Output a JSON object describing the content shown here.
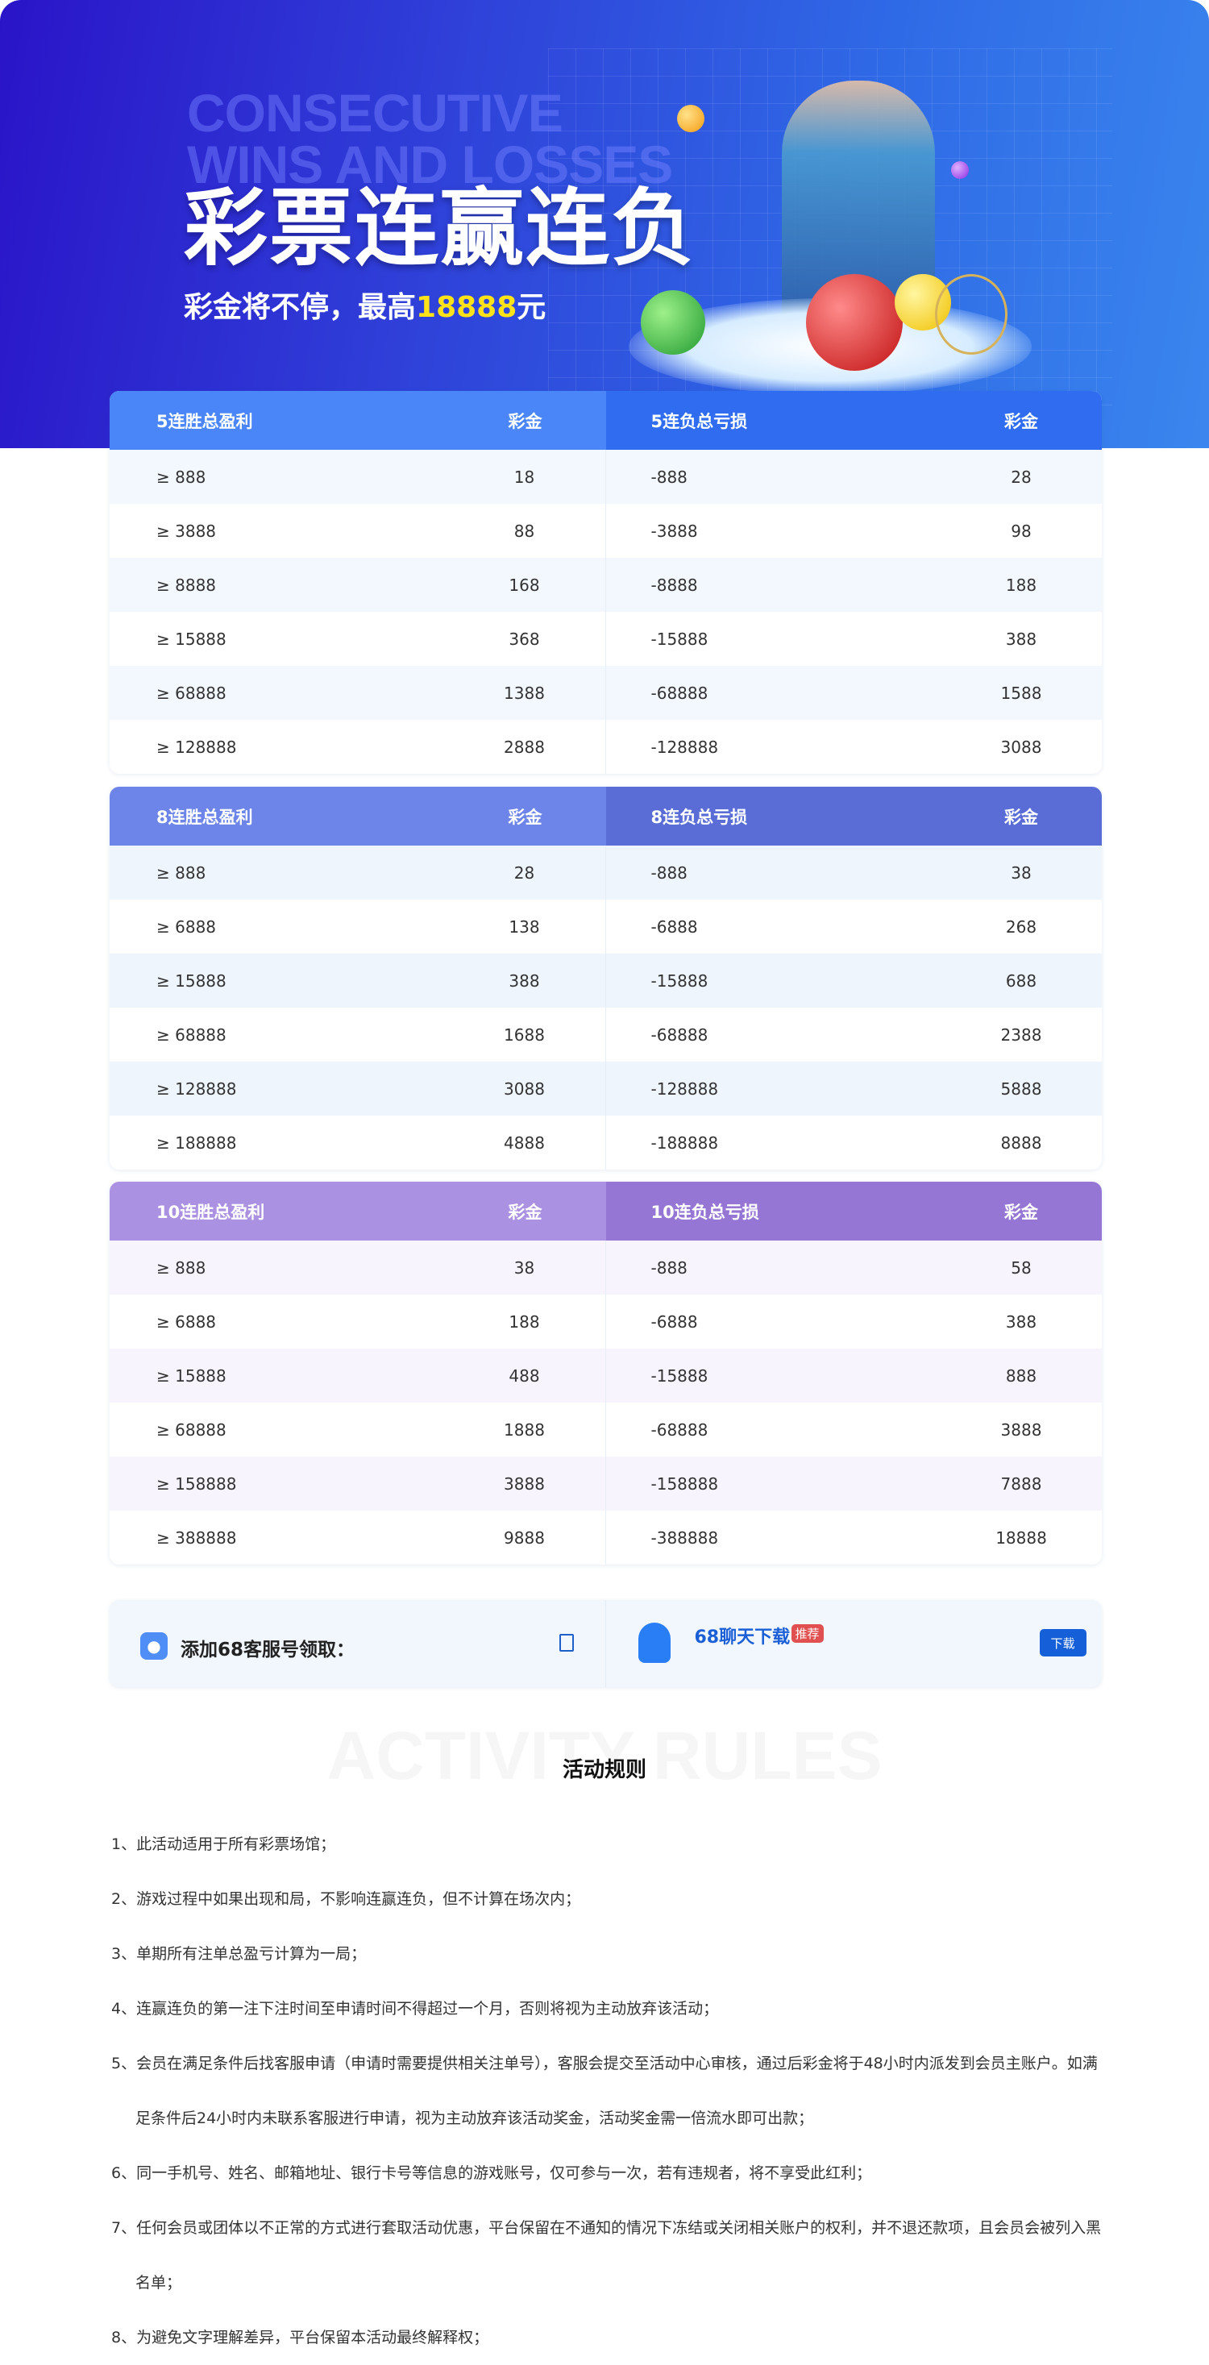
{
  "banner": {
    "title_en_1": "CONSECUTIVE",
    "title_en_2": "WINS AND LOSSES",
    "title": "彩票连赢连负",
    "subtitle_prefix": "彩金将不停，最高",
    "subtitle_amount": "18888",
    "subtitle_suffix": "元",
    "highlight_color": "#ffe21a"
  },
  "tables": [
    {
      "win_header": "5连胜总盈利",
      "loss_header": "5连负总亏损",
      "prize_header": "彩金",
      "colors": {
        "win": "#4a86f8",
        "loss": "#2f6cf0",
        "alt": "#f3f8fe"
      },
      "rows": [
        [
          "≥ 888",
          "18",
          "-888",
          "28"
        ],
        [
          "≥ 3888",
          "88",
          "-3888",
          "98"
        ],
        [
          "≥ 8888",
          "168",
          "-8888",
          "188"
        ],
        [
          "≥ 15888",
          "368",
          "-15888",
          "388"
        ],
        [
          "≥ 68888",
          "1388",
          "-68888",
          "1588"
        ],
        [
          "≥ 128888",
          "2888",
          "-128888",
          "3088"
        ]
      ]
    },
    {
      "win_header": "8连胜总盈利",
      "loss_header": "8连负总亏损",
      "prize_header": "彩金",
      "colors": {
        "win": "#6d84e8",
        "loss": "#5a6cd6",
        "alt": "#eef5fd"
      },
      "rows": [
        [
          "≥ 888",
          "28",
          "-888",
          "38"
        ],
        [
          "≥ 6888",
          "138",
          "-6888",
          "268"
        ],
        [
          "≥ 15888",
          "388",
          "-15888",
          "688"
        ],
        [
          "≥ 68888",
          "1688",
          "-68888",
          "2388"
        ],
        [
          "≥ 128888",
          "3088",
          "-128888",
          "5888"
        ],
        [
          "≥ 188888",
          "4888",
          "-188888",
          "8888"
        ]
      ]
    },
    {
      "win_header": "10连胜总盈利",
      "loss_header": "10连负总亏损",
      "prize_header": "彩金",
      "colors": {
        "win": "#ab91e2",
        "loss": "#9676d4",
        "alt": "#f7f4fd"
      },
      "rows": [
        [
          "≥ 888",
          "38",
          "-888",
          "58"
        ],
        [
          "≥ 6888",
          "188",
          "-6888",
          "388"
        ],
        [
          "≥ 15888",
          "488",
          "-15888",
          "888"
        ],
        [
          "≥ 68888",
          "1888",
          "-68888",
          "3888"
        ],
        [
          "≥ 158888",
          "3888",
          "-158888",
          "7888"
        ],
        [
          "≥ 388888",
          "9888",
          "-388888",
          "18888"
        ]
      ]
    }
  ],
  "contact": {
    "service_label": "添加68客服号领取：",
    "app_name": "68聊天下载",
    "badge": "推荐",
    "download_label": "下载"
  },
  "rules": {
    "bg_title": "ACTIVITY RULES",
    "title": "活动规则",
    "items": [
      "1、此活动适用于所有彩票场馆；",
      "2、游戏过程中如果出现和局，不影响连赢连负，但不计算在场次内；",
      "3、单期所有注单总盈亏计算为一局；",
      "4、连赢连负的第一注下注时间至申请时间不得超过一个月，否则将视为主动放弃该活动；",
      "5、会员在满足条件后找客服申请（申请时需要提供相关注单号），客服会提交至活动中心审核，通过后彩金将于48小时内派发到会员主账户。如满足条件后24小时内未联系客服进行申请，视为主动放弃该活动奖金，活动奖金需一倍流水即可出款；",
      "6、同一手机号、姓名、邮箱地址、银行卡号等信息的游戏账号，仅可参与一次，若有违规者，将不享受此红利；",
      "7、任何会员或团体以不正常的方式进行套取活动优惠，平台保留在不通知的情况下冻结或关闭相关账户的权利，并不退还款项，且会员会被列入黑名单；",
      "8、为避免文字理解差异，平台保留本活动最终解释权；"
    ]
  }
}
